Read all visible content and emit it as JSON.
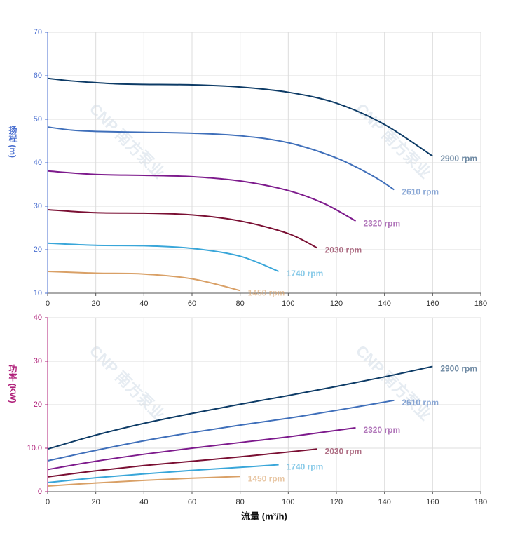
{
  "chart_data": [
    {
      "type": "line",
      "y_label": "扬程 (m)",
      "axis_color": "#4a6fd0",
      "grid": true,
      "watermark": "CNP 南方泵业",
      "xlim": [
        0,
        180
      ],
      "xticks": [
        0,
        20,
        40,
        60,
        80,
        100,
        120,
        140,
        160,
        180
      ],
      "ylim": [
        10,
        70
      ],
      "yticks": [
        10,
        20,
        30,
        40,
        50,
        60,
        70
      ],
      "series": [
        {
          "name": "2900 rpm",
          "color": "#0d3b66",
          "x": [
            0,
            10,
            20,
            30,
            40,
            60,
            80,
            100,
            120,
            140,
            160
          ],
          "values": [
            59.4,
            58.8,
            58.4,
            58.1,
            58.0,
            57.9,
            57.4,
            56.2,
            53.7,
            48.8,
            41.5
          ]
        },
        {
          "name": "2610 rpm",
          "color": "#3f6fba",
          "x": [
            0,
            10,
            20,
            40,
            60,
            80,
            100,
            120,
            135,
            144
          ],
          "values": [
            48.2,
            47.5,
            47.2,
            47.0,
            46.8,
            46.2,
            44.6,
            41.1,
            37.0,
            33.8
          ]
        },
        {
          "name": "2320 rpm",
          "color": "#7d1a8c",
          "x": [
            0,
            20,
            40,
            60,
            80,
            100,
            115,
            128
          ],
          "values": [
            38.1,
            37.3,
            37.1,
            36.8,
            35.8,
            33.6,
            30.6,
            26.6
          ]
        },
        {
          "name": "2030 rpm",
          "color": "#7a0f33",
          "x": [
            0,
            20,
            40,
            60,
            80,
            100,
            112
          ],
          "values": [
            29.2,
            28.5,
            28.4,
            28.0,
            26.6,
            23.7,
            20.4
          ]
        },
        {
          "name": "1740 rpm",
          "color": "#39a6d9",
          "x": [
            0,
            20,
            40,
            60,
            80,
            96
          ],
          "values": [
            21.5,
            21.0,
            20.9,
            20.3,
            18.5,
            15.0
          ]
        },
        {
          "name": "1450 rpm",
          "color": "#d9a066",
          "x": [
            0,
            20,
            40,
            60,
            80
          ],
          "values": [
            15.0,
            14.6,
            14.4,
            13.3,
            10.6
          ]
        }
      ]
    },
    {
      "type": "line",
      "y_label": "功率 (KW)",
      "axis_color": "#b0207a",
      "grid": true,
      "watermark": "CNP 南方泵业",
      "x_label": "流量 (m³/h)",
      "xlim": [
        0,
        180
      ],
      "xticks": [
        0,
        20,
        40,
        60,
        80,
        100,
        120,
        140,
        160,
        180
      ],
      "ylim": [
        0,
        40
      ],
      "yticks": [
        0,
        {
          "value": 10,
          "label": "10.0"
        },
        20,
        30,
        40
      ],
      "series": [
        {
          "name": "2900 rpm",
          "color": "#0d3b66",
          "x": [
            0,
            20,
            40,
            60,
            80,
            100,
            120,
            140,
            160
          ],
          "values": [
            9.8,
            13.0,
            15.7,
            18.0,
            20.1,
            22.1,
            24.2,
            26.4,
            28.8
          ]
        },
        {
          "name": "2610 rpm",
          "color": "#3f6fba",
          "x": [
            0,
            20,
            40,
            60,
            80,
            100,
            120,
            144
          ],
          "values": [
            7.1,
            9.5,
            11.7,
            13.6,
            15.3,
            16.9,
            18.7,
            21.0
          ]
        },
        {
          "name": "2320 rpm",
          "color": "#7d1a8c",
          "x": [
            0,
            20,
            40,
            60,
            80,
            100,
            128
          ],
          "values": [
            5.1,
            7.0,
            8.6,
            10.0,
            11.3,
            12.6,
            14.7
          ]
        },
        {
          "name": "2030 rpm",
          "color": "#7a0f33",
          "x": [
            0,
            20,
            40,
            60,
            80,
            112
          ],
          "values": [
            3.4,
            4.8,
            6.0,
            7.0,
            8.0,
            9.8
          ]
        },
        {
          "name": "1740 rpm",
          "color": "#39a6d9",
          "x": [
            0,
            20,
            40,
            60,
            80,
            96
          ],
          "values": [
            2.1,
            3.2,
            4.1,
            4.9,
            5.6,
            6.2
          ]
        },
        {
          "name": "1450 rpm",
          "color": "#d9a066",
          "x": [
            0,
            20,
            40,
            60,
            80
          ],
          "values": [
            1.3,
            2.0,
            2.6,
            3.1,
            3.5
          ]
        }
      ]
    }
  ]
}
